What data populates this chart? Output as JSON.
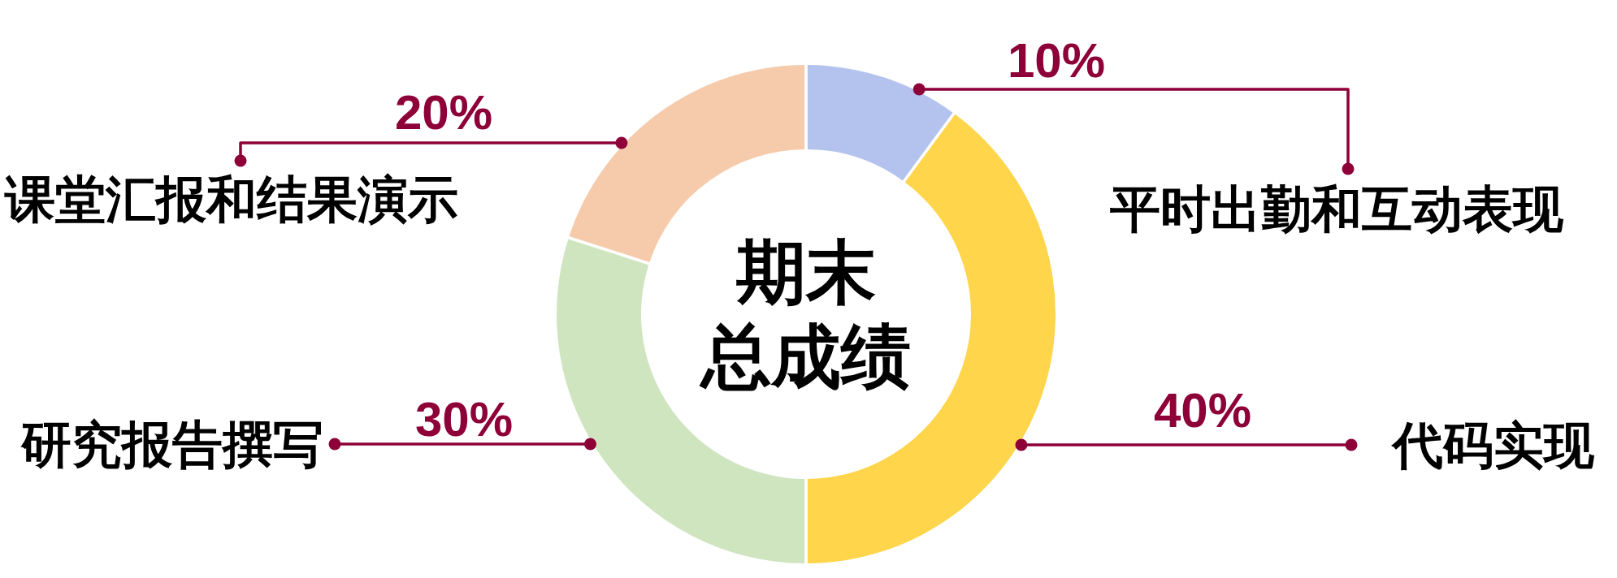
{
  "chart_data": {
    "type": "donut",
    "title": "期末总成绩",
    "categories": [
      "平时出勤和互动表现",
      "代码实现",
      "研究报告撰写",
      "课堂汇报和结果演示"
    ],
    "values": [
      10,
      40,
      30,
      20
    ],
    "colors": [
      "#b4c3ee",
      "#ffd54c",
      "#cfe5bf",
      "#f6cbab"
    ],
    "value_labels": [
      "10%",
      "40%",
      "30%",
      "20%"
    ]
  }
}
